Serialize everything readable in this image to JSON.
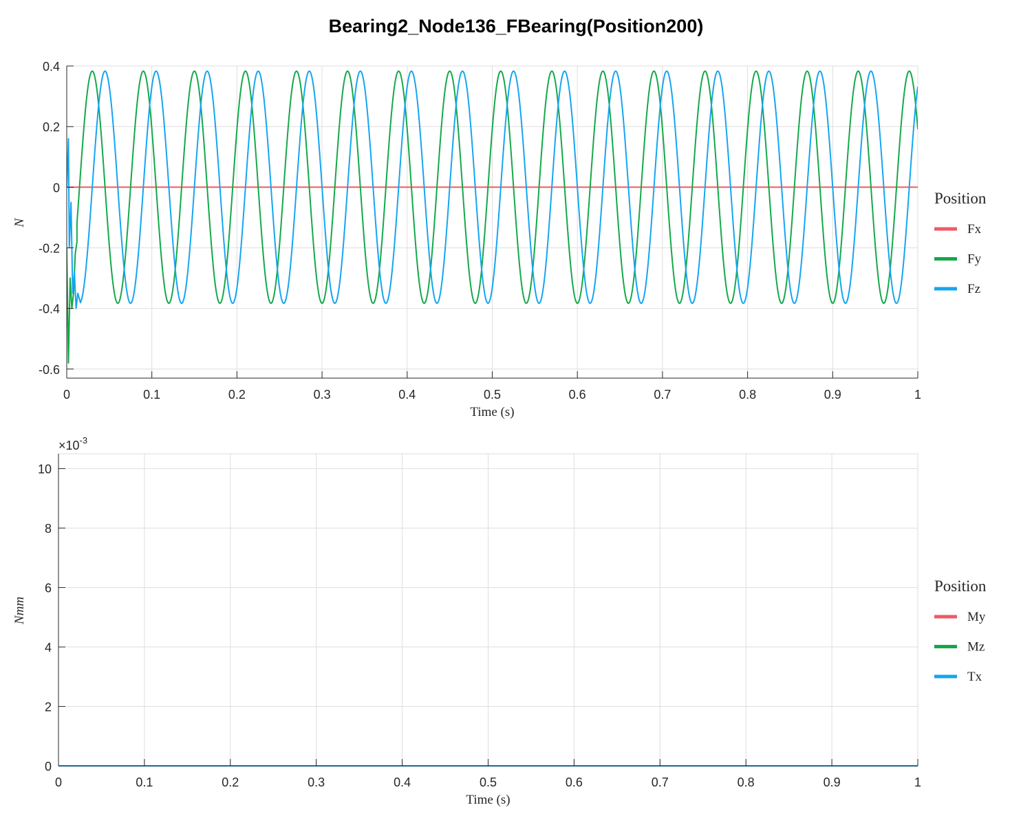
{
  "figure": {
    "title": "Bearing2_Node136_FBearing(Position200)"
  },
  "chart_data": [
    {
      "type": "line",
      "xlabel": "Time (s)",
      "ylabel": "N",
      "xlim": [
        0,
        1
      ],
      "ylim": [
        -0.63,
        0.4
      ],
      "x_ticks": [
        0,
        0.1,
        0.2,
        0.3,
        0.4,
        0.5,
        0.6,
        0.7,
        0.8,
        0.9,
        1
      ],
      "x_tick_labels": [
        "0",
        "0.1",
        "0.2",
        "0.3",
        "0.4",
        "0.5",
        "0.6",
        "0.7",
        "0.8",
        "0.9",
        "1"
      ],
      "y_ticks": [
        -0.6,
        -0.4,
        -0.2,
        0,
        0.2,
        0.4
      ],
      "y_tick_labels": [
        "-0.6",
        "-0.4",
        "-0.2",
        "0",
        "0.2",
        "0.4"
      ],
      "grid": true,
      "legend": {
        "title": "Position",
        "placement": "right"
      },
      "series": [
        {
          "name": "Fx",
          "color": "#ef5a66",
          "model": "constant",
          "value": 0
        },
        {
          "name": "Fy",
          "color": "#14a84a",
          "model": "sine",
          "amplitude": 0.383,
          "period": 0.06,
          "peak_at": 0.03
        },
        {
          "name": "Fz",
          "color": "#14a5f0",
          "model": "sine",
          "amplitude": 0.383,
          "period": 0.06,
          "peak_at": 0.045
        }
      ],
      "transient_startup": {
        "Fy": [
          [
            0,
            -0.2
          ],
          [
            0.002,
            -0.58
          ],
          [
            0.004,
            -0.3
          ],
          [
            0.006,
            -0.4
          ],
          [
            0.008,
            -0.35
          ],
          [
            0.01,
            -0.22
          ],
          [
            0.012,
            -0.18
          ]
        ],
        "Fz": [
          [
            0,
            0.0
          ],
          [
            0.002,
            0.16
          ],
          [
            0.003,
            -0.2
          ],
          [
            0.005,
            -0.05
          ],
          [
            0.007,
            -0.35
          ],
          [
            0.009,
            -0.28
          ],
          [
            0.011,
            -0.4
          ],
          [
            0.013,
            -0.35
          ],
          [
            0.016,
            -0.38
          ]
        ]
      }
    },
    {
      "type": "line",
      "xlabel": "Time (s)",
      "ylabel": "Nmm",
      "y_exponent_label": "×10",
      "y_exponent_power": "-3",
      "xlim": [
        0,
        1
      ],
      "ylim": [
        0,
        10.5
      ],
      "x_ticks": [
        0,
        0.1,
        0.2,
        0.3,
        0.4,
        0.5,
        0.6,
        0.7,
        0.8,
        0.9,
        1
      ],
      "x_tick_labels": [
        "0",
        "0.1",
        "0.2",
        "0.3",
        "0.4",
        "0.5",
        "0.6",
        "0.7",
        "0.8",
        "0.9",
        "1"
      ],
      "y_ticks": [
        0,
        2,
        4,
        6,
        8,
        10
      ],
      "y_tick_labels": [
        "0",
        "2",
        "4",
        "6",
        "8",
        "10"
      ],
      "grid": true,
      "legend": {
        "title": "Position",
        "placement": "right"
      },
      "series": [
        {
          "name": "My",
          "color": "#ef5a66",
          "model": "constant",
          "value": 0
        },
        {
          "name": "Mz",
          "color": "#14a84a",
          "model": "constant",
          "value": 0
        },
        {
          "name": "Tx",
          "color": "#14a5f0",
          "model": "constant",
          "value": 0
        }
      ]
    }
  ]
}
